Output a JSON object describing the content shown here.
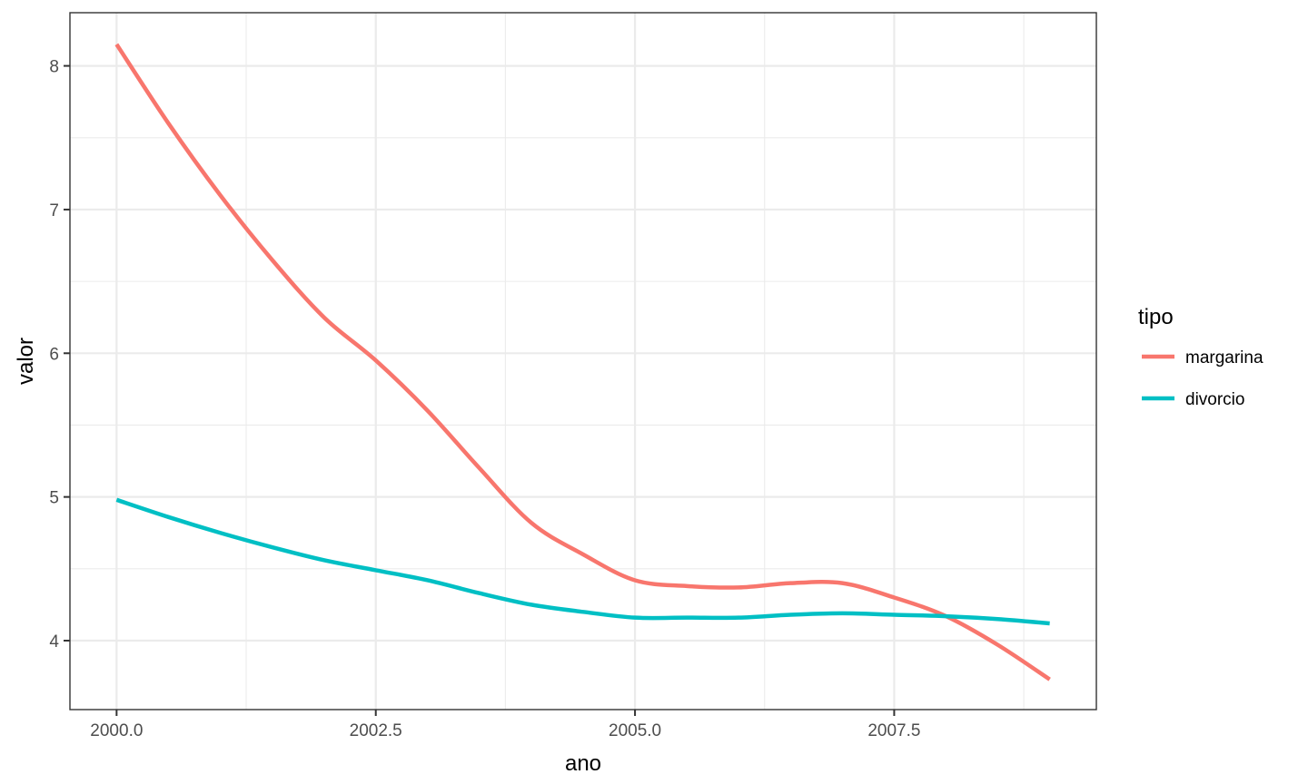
{
  "chart_data": {
    "type": "line",
    "title": "",
    "xlabel": "ano",
    "ylabel": "valor",
    "xlim": [
      1999.55,
      2009.45
    ],
    "ylim": [
      3.52,
      8.37
    ],
    "x_ticks": [
      2000,
      2002.5,
      2005,
      2007.5
    ],
    "x_tick_labels": [
      "2000.0",
      "2002.5",
      "2005.0",
      "2007.5"
    ],
    "x_minor": [
      2001.25,
      2003.75,
      2006.25,
      2008.75
    ],
    "y_ticks": [
      4,
      5,
      6,
      7,
      8
    ],
    "y_tick_labels": [
      "4",
      "5",
      "6",
      "7",
      "8"
    ],
    "y_minor": [
      4.5,
      5.5,
      6.5,
      7.5
    ],
    "grid": true,
    "legend": {
      "title": "tipo",
      "position": "right"
    },
    "series": [
      {
        "name": "margarina",
        "color": "#f8766d",
        "x": [
          2000.0,
          2000.5,
          2001.0,
          2001.5,
          2002.0,
          2002.5,
          2003.0,
          2003.5,
          2004.0,
          2004.5,
          2005.0,
          2005.5,
          2006.0,
          2006.5,
          2007.0,
          2007.5,
          2008.0,
          2008.5,
          2009.0
        ],
        "y": [
          8.15,
          7.6,
          7.1,
          6.65,
          6.25,
          5.95,
          5.6,
          5.2,
          4.82,
          4.6,
          4.42,
          4.38,
          4.37,
          4.4,
          4.4,
          4.3,
          4.17,
          3.97,
          3.73
        ]
      },
      {
        "name": "divorcio",
        "color": "#00bfc4",
        "x": [
          2000.0,
          2000.5,
          2001.0,
          2001.5,
          2002.0,
          2002.5,
          2003.0,
          2003.5,
          2004.0,
          2004.5,
          2005.0,
          2005.5,
          2006.0,
          2006.5,
          2007.0,
          2007.5,
          2008.0,
          2008.5,
          2009.0
        ],
        "y": [
          4.98,
          4.86,
          4.75,
          4.65,
          4.56,
          4.49,
          4.42,
          4.33,
          4.25,
          4.2,
          4.16,
          4.16,
          4.16,
          4.18,
          4.19,
          4.18,
          4.17,
          4.15,
          4.12
        ]
      }
    ]
  }
}
